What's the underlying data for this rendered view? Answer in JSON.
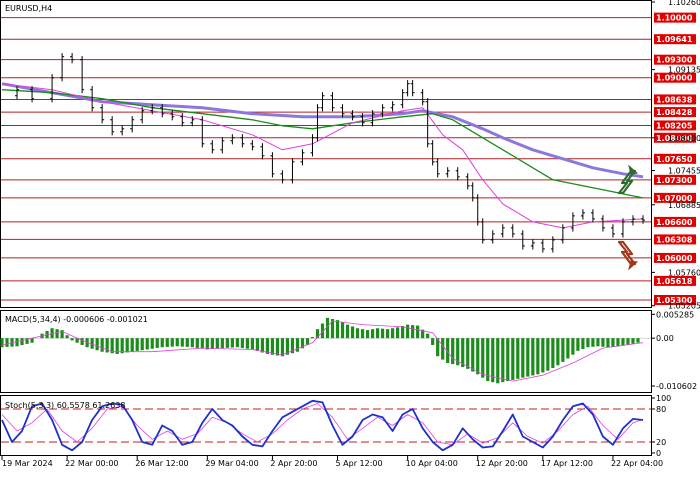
{
  "chart_data": {
    "type": "line",
    "main": {
      "title": "EURUSD,H4",
      "ylim": [
        1.052,
        1.1026
      ],
      "price_ticks": [
        {
          "v": 1.1026,
          "t": "1.10260"
        },
        {
          "v": 1.09135,
          "t": "1.09135"
        },
        {
          "v": 1.08,
          "t": "1.08000"
        },
        {
          "v": 1.07455,
          "t": "1.07455"
        },
        {
          "v": 1.06885,
          "t": "1.06885"
        },
        {
          "v": 1.0576,
          "t": "1.05760"
        },
        {
          "v": 1.05205,
          "t": "1.05205"
        }
      ],
      "levels": [
        {
          "v": 1.1,
          "t": "1.10000"
        },
        {
          "v": 1.09641,
          "t": "1.09641"
        },
        {
          "v": 1.093,
          "t": "1.09300"
        },
        {
          "v": 1.09,
          "t": "1.09000"
        },
        {
          "v": 1.08638,
          "t": "1.08638"
        },
        {
          "v": 1.08428,
          "t": "1.08428"
        },
        {
          "v": 1.08205,
          "t": "1.08205"
        },
        {
          "v": 1.08,
          "t": "1.08000"
        },
        {
          "v": 1.0765,
          "t": "1.07650"
        },
        {
          "v": 1.073,
          "t": "1.07300"
        },
        {
          "v": 1.07,
          "t": "1.07000"
        },
        {
          "v": 1.066,
          "t": "1.06600"
        },
        {
          "v": 1.06308,
          "t": "1.06308"
        },
        {
          "v": 1.06,
          "t": "1.06000"
        },
        {
          "v": 1.05618,
          "t": "1.05618"
        },
        {
          "v": 1.053,
          "t": "1.05300"
        }
      ],
      "close": [
        [
          0,
          1.087
        ],
        [
          3,
          1.088
        ],
        [
          6,
          1.0865
        ],
        [
          10,
          1.09
        ],
        [
          12,
          1.0935
        ],
        [
          14,
          1.093
        ],
        [
          16,
          1.088
        ],
        [
          18,
          1.085
        ],
        [
          20,
          1.083
        ],
        [
          22,
          1.081
        ],
        [
          24,
          1.0815
        ],
        [
          26,
          1.083
        ],
        [
          28,
          1.0845
        ],
        [
          30,
          1.085
        ],
        [
          32,
          1.084
        ],
        [
          34,
          1.0835
        ],
        [
          36,
          1.0825
        ],
        [
          38,
          1.083
        ],
        [
          40,
          1.079
        ],
        [
          42,
          1.078
        ],
        [
          44,
          1.0795
        ],
        [
          46,
          1.08
        ],
        [
          48,
          1.079
        ],
        [
          50,
          1.0785
        ],
        [
          52,
          1.077
        ],
        [
          54,
          1.074
        ],
        [
          56,
          1.073
        ],
        [
          58,
          1.076
        ],
        [
          60,
          1.0775
        ],
        [
          62,
          1.08
        ],
        [
          63,
          1.085
        ],
        [
          64,
          1.087
        ],
        [
          66,
          1.085
        ],
        [
          68,
          1.084
        ],
        [
          70,
          1.0835
        ],
        [
          72,
          1.0825
        ],
        [
          74,
          1.084
        ],
        [
          76,
          1.085
        ],
        [
          78,
          1.0855
        ],
        [
          80,
          1.0875
        ],
        [
          81,
          1.089
        ],
        [
          82,
          1.0875
        ],
        [
          84,
          1.086
        ],
        [
          85,
          1.079
        ],
        [
          86,
          1.076
        ],
        [
          87,
          1.074
        ],
        [
          89,
          1.0745
        ],
        [
          91,
          1.0735
        ],
        [
          93,
          1.072
        ],
        [
          94,
          1.07
        ],
        [
          95,
          1.066
        ],
        [
          96,
          1.063
        ],
        [
          98,
          1.064
        ],
        [
          100,
          1.065
        ],
        [
          102,
          1.064
        ],
        [
          104,
          1.062
        ],
        [
          106,
          1.0625
        ],
        [
          108,
          1.0615
        ],
        [
          110,
          1.063
        ],
        [
          112,
          1.065
        ],
        [
          114,
          1.067
        ],
        [
          116,
          1.0675
        ],
        [
          118,
          1.0665
        ],
        [
          120,
          1.065
        ],
        [
          122,
          1.064
        ],
        [
          124,
          1.066
        ],
        [
          126,
          1.0665
        ],
        [
          128,
          1.0663
        ]
      ],
      "ma_fast": [
        [
          0,
          1.089
        ],
        [
          10,
          1.088
        ],
        [
          20,
          1.086
        ],
        [
          30,
          1.0845
        ],
        [
          40,
          1.083
        ],
        [
          50,
          1.0805
        ],
        [
          56,
          1.078
        ],
        [
          62,
          1.079
        ],
        [
          70,
          1.0825
        ],
        [
          80,
          1.0845
        ],
        [
          84,
          1.085
        ],
        [
          88,
          1.0805
        ],
        [
          92,
          1.078
        ],
        [
          96,
          1.073
        ],
        [
          100,
          1.069
        ],
        [
          106,
          1.066
        ],
        [
          112,
          1.065
        ],
        [
          118,
          1.066
        ],
        [
          124,
          1.0663
        ],
        [
          128,
          1.0665
        ]
      ],
      "ma_mid": [
        [
          0,
          1.088
        ],
        [
          10,
          1.0875
        ],
        [
          20,
          1.0865
        ],
        [
          30,
          1.085
        ],
        [
          40,
          1.084
        ],
        [
          50,
          1.083
        ],
        [
          56,
          1.082
        ],
        [
          62,
          1.0815
        ],
        [
          70,
          1.0825
        ],
        [
          80,
          1.0835
        ],
        [
          86,
          1.084
        ],
        [
          90,
          1.083
        ],
        [
          94,
          1.081
        ],
        [
          100,
          1.078
        ],
        [
          106,
          1.075
        ],
        [
          110,
          1.073
        ],
        [
          116,
          1.072
        ],
        [
          122,
          1.071
        ],
        [
          128,
          1.07
        ]
      ],
      "ma_slow": [
        [
          0,
          1.089
        ],
        [
          10,
          1.0875
        ],
        [
          20,
          1.086
        ],
        [
          30,
          1.0855
        ],
        [
          40,
          1.085
        ],
        [
          50,
          1.084
        ],
        [
          60,
          1.0835
        ],
        [
          70,
          1.0835
        ],
        [
          80,
          1.084
        ],
        [
          84,
          1.0845
        ],
        [
          90,
          1.0835
        ],
        [
          96,
          1.0815
        ],
        [
          100,
          1.08
        ],
        [
          106,
          1.078
        ],
        [
          112,
          1.0765
        ],
        [
          118,
          1.075
        ],
        [
          124,
          1.074
        ],
        [
          128,
          1.0735
        ]
      ]
    },
    "macd": {
      "title": "MACD(5,34,4) -0.000606 -0.001021",
      "ylim": [
        -0.0117,
        0.0058
      ],
      "ticks": [
        {
          "v": 0.005285,
          "t": "0.005285"
        },
        {
          "v": 0.0,
          "t": "0.00"
        },
        {
          "v": -0.010602,
          "t": "-0.010602"
        }
      ],
      "hist": [
        [
          0,
          -0.002
        ],
        [
          3,
          -0.0018
        ],
        [
          6,
          -0.001
        ],
        [
          8,
          0.001
        ],
        [
          10,
          0.0022
        ],
        [
          12,
          0.0018
        ],
        [
          14,
          -0.0005
        ],
        [
          17,
          -0.002
        ],
        [
          20,
          -0.003
        ],
        [
          23,
          -0.0035
        ],
        [
          26,
          -0.003
        ],
        [
          29,
          -0.0025
        ],
        [
          32,
          -0.002
        ],
        [
          35,
          -0.0018
        ],
        [
          38,
          -0.002
        ],
        [
          41,
          -0.0025
        ],
        [
          44,
          -0.0022
        ],
        [
          47,
          -0.002
        ],
        [
          50,
          -0.0025
        ],
        [
          53,
          -0.0035
        ],
        [
          56,
          -0.004
        ],
        [
          59,
          -0.003
        ],
        [
          61,
          -0.0015
        ],
        [
          63,
          0.002
        ],
        [
          65,
          0.0045
        ],
        [
          67,
          0.004
        ],
        [
          69,
          0.003
        ],
        [
          71,
          0.0022
        ],
        [
          73,
          0.0018
        ],
        [
          75,
          0.0022
        ],
        [
          77,
          0.002
        ],
        [
          79,
          0.0024
        ],
        [
          81,
          0.003
        ],
        [
          83,
          0.0028
        ],
        [
          85,
          0.001
        ],
        [
          87,
          -0.004
        ],
        [
          89,
          -0.0055
        ],
        [
          91,
          -0.006
        ],
        [
          93,
          -0.0068
        ],
        [
          95,
          -0.008
        ],
        [
          97,
          -0.0095
        ],
        [
          99,
          -0.01
        ],
        [
          101,
          -0.0095
        ],
        [
          103,
          -0.009
        ],
        [
          105,
          -0.0085
        ],
        [
          107,
          -0.008
        ],
        [
          109,
          -0.0072
        ],
        [
          111,
          -0.006
        ],
        [
          113,
          -0.0045
        ],
        [
          115,
          -0.0028
        ],
        [
          117,
          -0.002
        ],
        [
          119,
          -0.0018
        ],
        [
          121,
          -0.002
        ],
        [
          123,
          -0.0018
        ],
        [
          125,
          -0.0015
        ],
        [
          127,
          -0.001
        ],
        [
          128,
          -0.0006
        ]
      ],
      "signal": [
        [
          0,
          -0.0015
        ],
        [
          8,
          0.0005
        ],
        [
          12,
          0.0015
        ],
        [
          16,
          -0.0005
        ],
        [
          22,
          -0.003
        ],
        [
          30,
          -0.003
        ],
        [
          40,
          -0.0022
        ],
        [
          50,
          -0.0025
        ],
        [
          56,
          -0.0037
        ],
        [
          62,
          -0.001
        ],
        [
          66,
          0.0038
        ],
        [
          72,
          0.003
        ],
        [
          80,
          0.0025
        ],
        [
          86,
          0.0012
        ],
        [
          90,
          -0.0045
        ],
        [
          96,
          -0.008
        ],
        [
          102,
          -0.0095
        ],
        [
          108,
          -0.0082
        ],
        [
          114,
          -0.0055
        ],
        [
          120,
          -0.0022
        ],
        [
          128,
          -0.001
        ]
      ]
    },
    "stoch": {
      "title": "Stoch(5,3,3) 60.5578 61.2638",
      "ylim": [
        0,
        100
      ],
      "ticks": [
        {
          "v": 100,
          "t": "100"
        },
        {
          "v": 80,
          "t": "80"
        },
        {
          "v": 20,
          "t": "20"
        },
        {
          "v": 0,
          "t": "0"
        }
      ],
      "levels": [
        80,
        20
      ],
      "k": [
        [
          0,
          60
        ],
        [
          2,
          20
        ],
        [
          4,
          40
        ],
        [
          6,
          85
        ],
        [
          8,
          90
        ],
        [
          10,
          60
        ],
        [
          12,
          15
        ],
        [
          14,
          5
        ],
        [
          16,
          20
        ],
        [
          18,
          60
        ],
        [
          20,
          85
        ],
        [
          22,
          90
        ],
        [
          24,
          88
        ],
        [
          26,
          60
        ],
        [
          28,
          20
        ],
        [
          30,
          15
        ],
        [
          32,
          50
        ],
        [
          34,
          40
        ],
        [
          36,
          15
        ],
        [
          38,
          20
        ],
        [
          40,
          55
        ],
        [
          42,
          80
        ],
        [
          44,
          60
        ],
        [
          46,
          50
        ],
        [
          48,
          30
        ],
        [
          50,
          15
        ],
        [
          52,
          12
        ],
        [
          54,
          40
        ],
        [
          56,
          65
        ],
        [
          58,
          75
        ],
        [
          60,
          85
        ],
        [
          62,
          95
        ],
        [
          64,
          92
        ],
        [
          66,
          50
        ],
        [
          68,
          15
        ],
        [
          70,
          30
        ],
        [
          72,
          60
        ],
        [
          74,
          70
        ],
        [
          76,
          65
        ],
        [
          78,
          40
        ],
        [
          80,
          70
        ],
        [
          82,
          80
        ],
        [
          84,
          45
        ],
        [
          86,
          20
        ],
        [
          88,
          5
        ],
        [
          90,
          15
        ],
        [
          92,
          45
        ],
        [
          94,
          25
        ],
        [
          96,
          10
        ],
        [
          98,
          12
        ],
        [
          100,
          40
        ],
        [
          102,
          70
        ],
        [
          104,
          30
        ],
        [
          106,
          20
        ],
        [
          108,
          10
        ],
        [
          110,
          30
        ],
        [
          112,
          60
        ],
        [
          114,
          85
        ],
        [
          116,
          90
        ],
        [
          118,
          70
        ],
        [
          120,
          30
        ],
        [
          122,
          15
        ],
        [
          124,
          45
        ],
        [
          126,
          62
        ],
        [
          128,
          60
        ]
      ],
      "d": [
        [
          0,
          70
        ],
        [
          3,
          40
        ],
        [
          6,
          55
        ],
        [
          9,
          80
        ],
        [
          12,
          40
        ],
        [
          15,
          20
        ],
        [
          18,
          45
        ],
        [
          21,
          80
        ],
        [
          24,
          85
        ],
        [
          27,
          50
        ],
        [
          30,
          25
        ],
        [
          33,
          40
        ],
        [
          36,
          25
        ],
        [
          39,
          35
        ],
        [
          42,
          65
        ],
        [
          45,
          55
        ],
        [
          48,
          35
        ],
        [
          51,
          20
        ],
        [
          54,
          35
        ],
        [
          57,
          60
        ],
        [
          60,
          80
        ],
        [
          63,
          90
        ],
        [
          66,
          65
        ],
        [
          69,
          25
        ],
        [
          72,
          45
        ],
        [
          75,
          65
        ],
        [
          78,
          50
        ],
        [
          81,
          70
        ],
        [
          84,
          55
        ],
        [
          87,
          20
        ],
        [
          90,
          15
        ],
        [
          93,
          35
        ],
        [
          96,
          18
        ],
        [
          99,
          28
        ],
        [
          102,
          55
        ],
        [
          105,
          30
        ],
        [
          108,
          18
        ],
        [
          111,
          40
        ],
        [
          114,
          70
        ],
        [
          117,
          85
        ],
        [
          120,
          50
        ],
        [
          123,
          25
        ],
        [
          126,
          55
        ],
        [
          128,
          61
        ]
      ]
    },
    "x_ticks": [
      {
        "i": 0,
        "t": "19 Mar 2024"
      },
      {
        "i": 13,
        "t": "22 Mar 00:00"
      },
      {
        "i": 27,
        "t": "26 Mar 12:00"
      },
      {
        "i": 41,
        "t": "29 Mar 04:00"
      },
      {
        "i": 54,
        "t": "2 Apr 20:00"
      },
      {
        "i": 67,
        "t": "5 Apr 12:00"
      },
      {
        "i": 81,
        "t": "10 Apr 04:00"
      },
      {
        "i": 95,
        "t": "12 Apr 20:00"
      },
      {
        "i": 108,
        "t": "17 Apr 12:00"
      },
      {
        "i": 122,
        "t": "22 Apr 04:00"
      }
    ],
    "x_count": 130,
    "colors": {
      "price": "#000000",
      "ma_fast": "#e040e0",
      "ma_mid": "#1a8c1a",
      "ma_slow": "#8c78dc",
      "level_line": "#b22222",
      "level_box": "#e00000",
      "macd_hist": "#1a8c1a",
      "macd_signal": "#e040e0",
      "stoch_k": "#1e32c8",
      "stoch_d": "#e040e0",
      "arrow_up": "#2e6b2e",
      "arrow_down": "#a0381a"
    },
    "icons": [
      "trend-up-arrow-icon",
      "trend-down-arrow-icon"
    ]
  }
}
